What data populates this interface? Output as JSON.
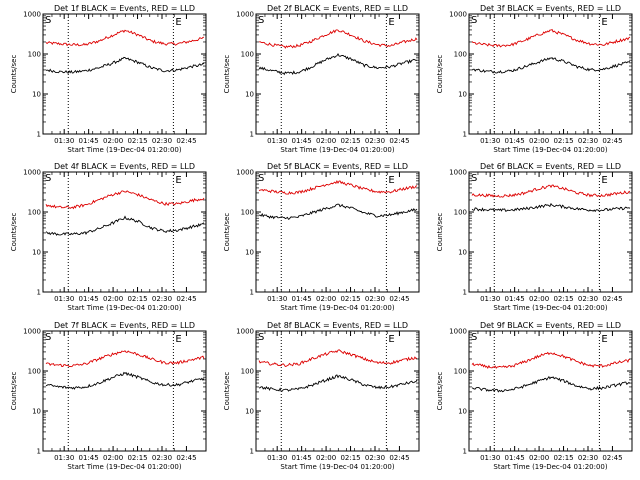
{
  "chart_data": [
    {
      "type": "line",
      "title": "Det 1f BLACK = Events, RED = LLD",
      "xlabel": "Start Time (19-Dec-04 01:20:00)",
      "ylabel": "Counts/sec",
      "yscale": "log",
      "ylim": [
        1,
        1000
      ],
      "xtick_labels": [
        "01:30",
        "01:45",
        "02:00",
        "02:15",
        "02:30",
        "02:45"
      ],
      "ytick_labels": [
        "1",
        "10",
        "100",
        "1000"
      ],
      "segment_markers": {
        "start": "S",
        "end": "E"
      },
      "series": [
        {
          "color": "#dd0000",
          "values": [
            190,
            180,
            170,
            170,
            210,
            290,
            390,
            300,
            210,
            180,
            180,
            210,
            250
          ]
        },
        {
          "color": "#000000",
          "values": [
            40,
            36,
            35,
            38,
            45,
            58,
            78,
            62,
            45,
            38,
            40,
            48,
            55
          ]
        }
      ]
    },
    {
      "type": "line",
      "title": "Det 2f BLACK = Events, RED = LLD",
      "xlabel": "Start Time (19-Dec-04 01:20:00)",
      "ylabel": "Counts/sec",
      "yscale": "log",
      "ylim": [
        1,
        1000
      ],
      "xtick_labels": [
        "01:30",
        "01:45",
        "02:00",
        "02:15",
        "02:30",
        "02:45"
      ],
      "ytick_labels": [
        "1",
        "10",
        "100",
        "1000"
      ],
      "segment_markers": {
        "start": "S",
        "end": "E"
      },
      "series": [
        {
          "color": "#dd0000",
          "values": [
            200,
            170,
            150,
            160,
            210,
            300,
            400,
            300,
            210,
            170,
            160,
            200,
            240
          ]
        },
        {
          "color": "#000000",
          "values": [
            45,
            38,
            33,
            35,
            48,
            70,
            95,
            75,
            52,
            45,
            48,
            60,
            72
          ]
        }
      ]
    },
    {
      "type": "line",
      "title": "Det 3f BLACK = Events, RED = LLD",
      "xlabel": "Start Time (19-Dec-04 01:20:00)",
      "ylabel": "Counts/sec",
      "yscale": "log",
      "ylim": [
        1,
        1000
      ],
      "xtick_labels": [
        "01:30",
        "01:45",
        "02:00",
        "02:15",
        "02:30",
        "02:45"
      ],
      "ytick_labels": [
        "1",
        "10",
        "100",
        "1000"
      ],
      "segment_markers": {
        "start": "S",
        "end": "E"
      },
      "series": [
        {
          "color": "#dd0000",
          "values": [
            190,
            170,
            160,
            170,
            220,
            300,
            390,
            300,
            220,
            180,
            170,
            210,
            250
          ]
        },
        {
          "color": "#000000",
          "values": [
            42,
            37,
            36,
            38,
            48,
            62,
            80,
            65,
            48,
            40,
            42,
            52,
            62
          ]
        }
      ]
    },
    {
      "type": "line",
      "title": "Det 4f BLACK = Events, RED = LLD",
      "xlabel": "Start Time (19-Dec-04 01:20:00)",
      "ylabel": "Counts/sec",
      "yscale": "log",
      "ylim": [
        1,
        1000
      ],
      "xtick_labels": [
        "01:30",
        "01:45",
        "02:00",
        "02:15",
        "02:30",
        "02:45"
      ],
      "ytick_labels": [
        "1",
        "10",
        "100",
        "1000"
      ],
      "segment_markers": {
        "start": "S",
        "end": "E"
      },
      "series": [
        {
          "color": "#dd0000",
          "values": [
            150,
            130,
            130,
            150,
            200,
            270,
            330,
            270,
            200,
            160,
            160,
            190,
            220
          ]
        },
        {
          "color": "#000000",
          "values": [
            30,
            28,
            28,
            30,
            38,
            52,
            72,
            58,
            40,
            33,
            35,
            42,
            50
          ]
        }
      ]
    },
    {
      "type": "line",
      "title": "Det 5f BLACK = Events, RED = LLD",
      "xlabel": "Start Time (19-Dec-04 01:20:00)",
      "ylabel": "Counts/sec",
      "yscale": "log",
      "ylim": [
        1,
        1000
      ],
      "xtick_labels": [
        "01:30",
        "01:45",
        "02:00",
        "02:15",
        "02:30",
        "02:45"
      ],
      "ytick_labels": [
        "1",
        "10",
        "100",
        "1000"
      ],
      "segment_markers": {
        "start": "S",
        "end": "E"
      },
      "series": [
        {
          "color": "#dd0000",
          "values": [
            360,
            330,
            300,
            310,
            380,
            480,
            570,
            470,
            370,
            320,
            320,
            380,
            440
          ]
        },
        {
          "color": "#000000",
          "values": [
            85,
            75,
            70,
            75,
            95,
            120,
            150,
            125,
            95,
            80,
            85,
            100,
            115
          ]
        }
      ]
    },
    {
      "type": "line",
      "title": "Det 6f BLACK = Events, RED = LLD",
      "xlabel": "Start Time (19-Dec-04 01:20:00)",
      "ylabel": "Counts/sec",
      "yscale": "log",
      "ylim": [
        1,
        1000
      ],
      "xtick_labels": [
        "01:30",
        "01:45",
        "02:00",
        "02:15",
        "02:30",
        "02:45"
      ],
      "ytick_labels": [
        "1",
        "10",
        "100",
        "1000"
      ],
      "segment_markers": {
        "start": "S",
        "end": "E"
      },
      "series": [
        {
          "color": "#dd0000",
          "values": [
            270,
            260,
            250,
            260,
            300,
            380,
            450,
            380,
            300,
            260,
            260,
            290,
            320
          ]
        },
        {
          "color": "#000000",
          "values": [
            120,
            115,
            110,
            112,
            120,
            135,
            150,
            135,
            120,
            112,
            112,
            120,
            128
          ]
        }
      ]
    },
    {
      "type": "line",
      "title": "Det 7f BLACK = Events, RED = LLD",
      "xlabel": "Start Time (19-Dec-04 01:20:00)",
      "ylabel": "Counts/sec",
      "yscale": "log",
      "ylim": [
        1,
        1000
      ],
      "xtick_labels": [
        "01:30",
        "01:45",
        "02:00",
        "02:15",
        "02:30",
        "02:45"
      ],
      "ytick_labels": [
        "1",
        "10",
        "100",
        "1000"
      ],
      "segment_markers": {
        "start": "S",
        "end": "E"
      },
      "series": [
        {
          "color": "#dd0000",
          "values": [
            150,
            140,
            135,
            150,
            200,
            260,
            320,
            260,
            200,
            160,
            160,
            190,
            220
          ]
        },
        {
          "color": "#000000",
          "values": [
            45,
            40,
            38,
            40,
            50,
            68,
            88,
            70,
            52,
            45,
            45,
            55,
            65
          ]
        }
      ]
    },
    {
      "type": "line",
      "title": "Det 8f BLACK = Events, RED = LLD",
      "xlabel": "Start Time (19-Dec-04 01:20:00)",
      "ylabel": "Counts/sec",
      "yscale": "log",
      "ylim": [
        1,
        1000
      ],
      "xtick_labels": [
        "01:30",
        "01:45",
        "02:00",
        "02:15",
        "02:30",
        "02:45"
      ],
      "ytick_labels": [
        "1",
        "10",
        "100",
        "1000"
      ],
      "segment_markers": {
        "start": "S",
        "end": "E"
      },
      "series": [
        {
          "color": "#dd0000",
          "values": [
            170,
            150,
            140,
            150,
            200,
            260,
            320,
            260,
            200,
            160,
            160,
            190,
            220
          ]
        },
        {
          "color": "#000000",
          "values": [
            40,
            35,
            33,
            35,
            44,
            58,
            75,
            60,
            45,
            38,
            40,
            48,
            55
          ]
        }
      ]
    },
    {
      "type": "line",
      "title": "Det 9f BLACK = Events, RED = LLD",
      "xlabel": "Start Time (19-Dec-04 01:20:00)",
      "ylabel": "Counts/sec",
      "yscale": "log",
      "ylim": [
        1,
        1000
      ],
      "xtick_labels": [
        "01:30",
        "01:45",
        "02:00",
        "02:15",
        "02:30",
        "02:45"
      ],
      "ytick_labels": [
        "1",
        "10",
        "100",
        "1000"
      ],
      "segment_markers": {
        "start": "S",
        "end": "E"
      },
      "series": [
        {
          "color": "#dd0000",
          "values": [
            150,
            130,
            120,
            130,
            170,
            230,
            290,
            230,
            170,
            135,
            135,
            160,
            185
          ]
        },
        {
          "color": "#000000",
          "values": [
            38,
            34,
            32,
            34,
            42,
            55,
            70,
            56,
            42,
            36,
            38,
            45,
            52
          ]
        }
      ]
    }
  ]
}
